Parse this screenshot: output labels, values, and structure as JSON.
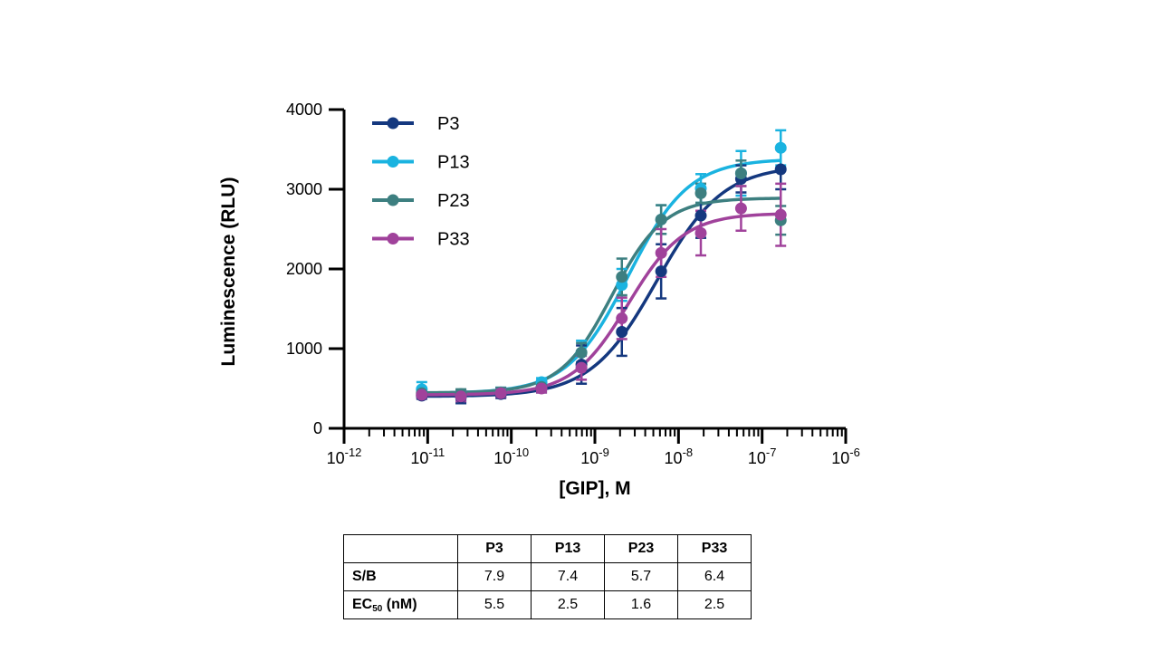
{
  "chart_data": {
    "type": "scatter",
    "xlabel": "[GIP], M",
    "ylabel": "Luminescence (RLU)",
    "x_scale": "log",
    "xlim": [
      1e-12,
      1e-06
    ],
    "ylim": [
      0,
      4000
    ],
    "y_ticks": [
      0,
      1000,
      2000,
      3000,
      4000
    ],
    "x_tick_labels": [
      {
        "base": "10",
        "exp": "-12"
      },
      {
        "base": "10",
        "exp": "-11"
      },
      {
        "base": "10",
        "exp": "-10"
      },
      {
        "base": "10",
        "exp": "-9"
      },
      {
        "base": "10",
        "exp": "-8"
      },
      {
        "base": "10",
        "exp": "-7"
      },
      {
        "base": "10",
        "exp": "-6"
      }
    ],
    "legend_position": "top-left",
    "grid": false,
    "x": [
      8.5e-12,
      2.5e-11,
      7.5e-11,
      2.3e-10,
      6.9e-10,
      2.1e-09,
      6.2e-09,
      1.85e-08,
      5.6e-08,
      1.67e-07
    ],
    "series": [
      {
        "name": "P3",
        "color": "#14387f",
        "y": [
          410,
          395,
          430,
          510,
          800,
          1210,
          1970,
          2670,
          3130,
          3250
        ],
        "err": [
          40,
          80,
          50,
          60,
          240,
          300,
          340,
          280,
          170,
          250
        ],
        "fit": {
          "bottom": 400,
          "top": 3300,
          "ec50": 5.5e-09,
          "hill": 1.1
        }
      },
      {
        "name": "P13",
        "color": "#1ab3e0",
        "y": [
          490,
          410,
          450,
          580,
          950,
          1800,
          2620,
          3010,
          3200,
          3520
        ],
        "err": [
          90,
          60,
          60,
          50,
          150,
          200,
          180,
          180,
          280,
          220
        ],
        "fit": {
          "bottom": 440,
          "top": 3380,
          "ec50": 2.5e-09,
          "hill": 1.2
        }
      },
      {
        "name": "P23",
        "color": "#3d7f80",
        "y": [
          440,
          430,
          450,
          520,
          950,
          1900,
          2620,
          2950,
          3200,
          2610
        ],
        "err": [
          50,
          60,
          60,
          50,
          120,
          230,
          180,
          120,
          160,
          180
        ],
        "fit": {
          "bottom": 445,
          "top": 2890,
          "ec50": 1.6e-09,
          "hill": 1.4
        }
      },
      {
        "name": "P33",
        "color": "#a0429b",
        "y": [
          420,
          400,
          440,
          500,
          760,
          1380,
          2200,
          2450,
          2760,
          2680
        ],
        "err": [
          40,
          60,
          50,
          50,
          150,
          260,
          300,
          280,
          280,
          390
        ],
        "fit": {
          "bottom": 420,
          "top": 2700,
          "ec50": 2.5e-09,
          "hill": 1.3
        }
      }
    ]
  },
  "table": {
    "header": [
      "",
      "P3",
      "P13",
      "P23",
      "P33"
    ],
    "rows": [
      {
        "label": "S/B",
        "values": [
          "7.9",
          "7.4",
          "5.7",
          "6.4"
        ]
      },
      {
        "label_main": "EC",
        "label_sub": "50",
        "label_tail": " (nM)",
        "values": [
          "5.5",
          "2.5",
          "1.6",
          "2.5"
        ]
      }
    ]
  }
}
